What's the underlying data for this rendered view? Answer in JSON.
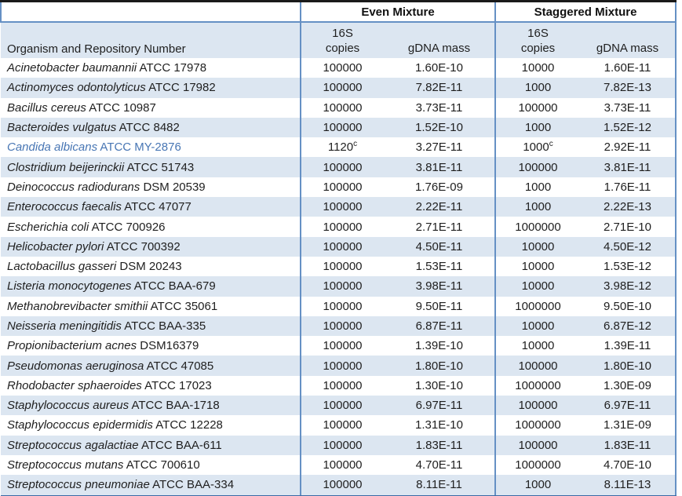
{
  "table": {
    "groups": {
      "even": "Even Mixture",
      "staggered": "Staggered Mixture"
    },
    "headers": {
      "organism": "Organism and Repository Number",
      "copies_line1": "16S",
      "copies_line2": "copies",
      "gdna": "gDNA mass"
    },
    "colors": {
      "alt_row": "#dce6f1",
      "rule_blue": "#6590c4",
      "top_border": "#1a1a1a",
      "bottom_border": "#3b6ba5",
      "highlight_text": "#4876b4"
    },
    "rows": [
      {
        "organism_sci": "Acinetobacter baumannii",
        "organism_repo": "ATCC 17978",
        "even_copies": "100000",
        "even_copies_sup": "",
        "even_gdna": "1.60E-10",
        "stag_copies": "10000",
        "stag_copies_sup": "",
        "stag_gdna": "1.60E-11",
        "highlight": false
      },
      {
        "organism_sci": "Actinomyces odontolyticus",
        "organism_repo": "ATCC 17982",
        "even_copies": "100000",
        "even_copies_sup": "",
        "even_gdna": "7.82E-11",
        "stag_copies": "1000",
        "stag_copies_sup": "",
        "stag_gdna": "7.82E-13",
        "highlight": false
      },
      {
        "organism_sci": "Bacillus cereus",
        "organism_repo": "ATCC 10987",
        "even_copies": "100000",
        "even_copies_sup": "",
        "even_gdna": "3.73E-11",
        "stag_copies": "100000",
        "stag_copies_sup": "",
        "stag_gdna": "3.73E-11",
        "highlight": false
      },
      {
        "organism_sci": "Bacteroides vulgatus",
        "organism_repo": "ATCC 8482",
        "even_copies": "100000",
        "even_copies_sup": "",
        "even_gdna": "1.52E-10",
        "stag_copies": "1000",
        "stag_copies_sup": "",
        "stag_gdna": "1.52E-12",
        "highlight": false
      },
      {
        "organism_sci": "Candida albicans",
        "organism_repo": "ATCC MY-2876",
        "even_copies": "1120",
        "even_copies_sup": "c",
        "even_gdna": "3.27E-11",
        "stag_copies": "1000",
        "stag_copies_sup": "c",
        "stag_gdna": "2.92E-11",
        "highlight": true
      },
      {
        "organism_sci": "Clostridium beijerinckii",
        "organism_repo": "ATCC 51743",
        "even_copies": "100000",
        "even_copies_sup": "",
        "even_gdna": "3.81E-11",
        "stag_copies": "100000",
        "stag_copies_sup": "",
        "stag_gdna": "3.81E-11",
        "highlight": false
      },
      {
        "organism_sci": "Deinococcus radiodurans",
        "organism_repo": "DSM 20539",
        "even_copies": "100000",
        "even_copies_sup": "",
        "even_gdna": "1.76E-09",
        "stag_copies": "1000",
        "stag_copies_sup": "",
        "stag_gdna": "1.76E-11",
        "highlight": false
      },
      {
        "organism_sci": "Enterococcus faecalis",
        "organism_repo": "ATCC 47077",
        "even_copies": "100000",
        "even_copies_sup": "",
        "even_gdna": "2.22E-11",
        "stag_copies": "1000",
        "stag_copies_sup": "",
        "stag_gdna": "2.22E-13",
        "highlight": false
      },
      {
        "organism_sci": "Escherichia coli",
        "organism_repo": "ATCC 700926",
        "even_copies": "100000",
        "even_copies_sup": "",
        "even_gdna": "2.71E-11",
        "stag_copies": "1000000",
        "stag_copies_sup": "",
        "stag_gdna": "2.71E-10",
        "highlight": false
      },
      {
        "organism_sci": "Helicobacter pylori",
        "organism_repo": "ATCC 700392",
        "even_copies": "100000",
        "even_copies_sup": "",
        "even_gdna": "4.50E-11",
        "stag_copies": "10000",
        "stag_copies_sup": "",
        "stag_gdna": "4.50E-12",
        "highlight": false
      },
      {
        "organism_sci": "Lactobacillus gasseri",
        "organism_repo": "DSM 20243",
        "even_copies": "100000",
        "even_copies_sup": "",
        "even_gdna": "1.53E-11",
        "stag_copies": "10000",
        "stag_copies_sup": "",
        "stag_gdna": "1.53E-12",
        "highlight": false
      },
      {
        "organism_sci": "Listeria monocytogenes",
        "organism_repo": "ATCC BAA-679",
        "even_copies": "100000",
        "even_copies_sup": "",
        "even_gdna": "3.98E-11",
        "stag_copies": "10000",
        "stag_copies_sup": "",
        "stag_gdna": "3.98E-12",
        "highlight": false
      },
      {
        "organism_sci": "Methanobrevibacter smithii",
        "organism_repo": "ATCC 35061",
        "even_copies": "100000",
        "even_copies_sup": "",
        "even_gdna": "9.50E-11",
        "stag_copies": "1000000",
        "stag_copies_sup": "",
        "stag_gdna": "9.50E-10",
        "highlight": false
      },
      {
        "organism_sci": "Neisseria meningitidis",
        "organism_repo": "ATCC BAA-335",
        "even_copies": "100000",
        "even_copies_sup": "",
        "even_gdna": "6.87E-11",
        "stag_copies": "10000",
        "stag_copies_sup": "",
        "stag_gdna": "6.87E-12",
        "highlight": false
      },
      {
        "organism_sci": "Propionibacterium acnes",
        "organism_repo": "DSM16379",
        "even_copies": "100000",
        "even_copies_sup": "",
        "even_gdna": "1.39E-10",
        "stag_copies": "10000",
        "stag_copies_sup": "",
        "stag_gdna": "1.39E-11",
        "highlight": false
      },
      {
        "organism_sci": "Pseudomonas aeruginosa",
        "organism_repo": "ATCC 47085",
        "even_copies": "100000",
        "even_copies_sup": "",
        "even_gdna": "1.80E-10",
        "stag_copies": "100000",
        "stag_copies_sup": "",
        "stag_gdna": "1.80E-10",
        "highlight": false
      },
      {
        "organism_sci": "Rhodobacter sphaeroides",
        "organism_repo": "ATCC 17023",
        "even_copies": "100000",
        "even_copies_sup": "",
        "even_gdna": "1.30E-10",
        "stag_copies": "1000000",
        "stag_copies_sup": "",
        "stag_gdna": "1.30E-09",
        "highlight": false
      },
      {
        "organism_sci": "Staphylococcus aureus",
        "organism_repo": "ATCC BAA-1718",
        "even_copies": "100000",
        "even_copies_sup": "",
        "even_gdna": "6.97E-11",
        "stag_copies": "100000",
        "stag_copies_sup": "",
        "stag_gdna": "6.97E-11",
        "highlight": false
      },
      {
        "organism_sci": "Staphylococcus epidermidis",
        "organism_repo": "ATCC 12228",
        "even_copies": "100000",
        "even_copies_sup": "",
        "even_gdna": "1.31E-10",
        "stag_copies": "1000000",
        "stag_copies_sup": "",
        "stag_gdna": "1.31E-09",
        "highlight": false
      },
      {
        "organism_sci": "Streptococcus agalactiae",
        "organism_repo": "ATCC BAA-611",
        "even_copies": "100000",
        "even_copies_sup": "",
        "even_gdna": "1.83E-11",
        "stag_copies": "100000",
        "stag_copies_sup": "",
        "stag_gdna": "1.83E-11",
        "highlight": false
      },
      {
        "organism_sci": "Streptococcus mutans",
        "organism_repo": "ATCC 700610",
        "even_copies": "100000",
        "even_copies_sup": "",
        "even_gdna": "4.70E-11",
        "stag_copies": "1000000",
        "stag_copies_sup": "",
        "stag_gdna": "4.70E-10",
        "highlight": false
      },
      {
        "organism_sci": "Streptococcus pneumoniae",
        "organism_repo": "ATCC BAA-334",
        "even_copies": "100000",
        "even_copies_sup": "",
        "even_gdna": "8.11E-11",
        "stag_copies": "1000",
        "stag_copies_sup": "",
        "stag_gdna": "8.11E-13",
        "highlight": false
      }
    ]
  }
}
